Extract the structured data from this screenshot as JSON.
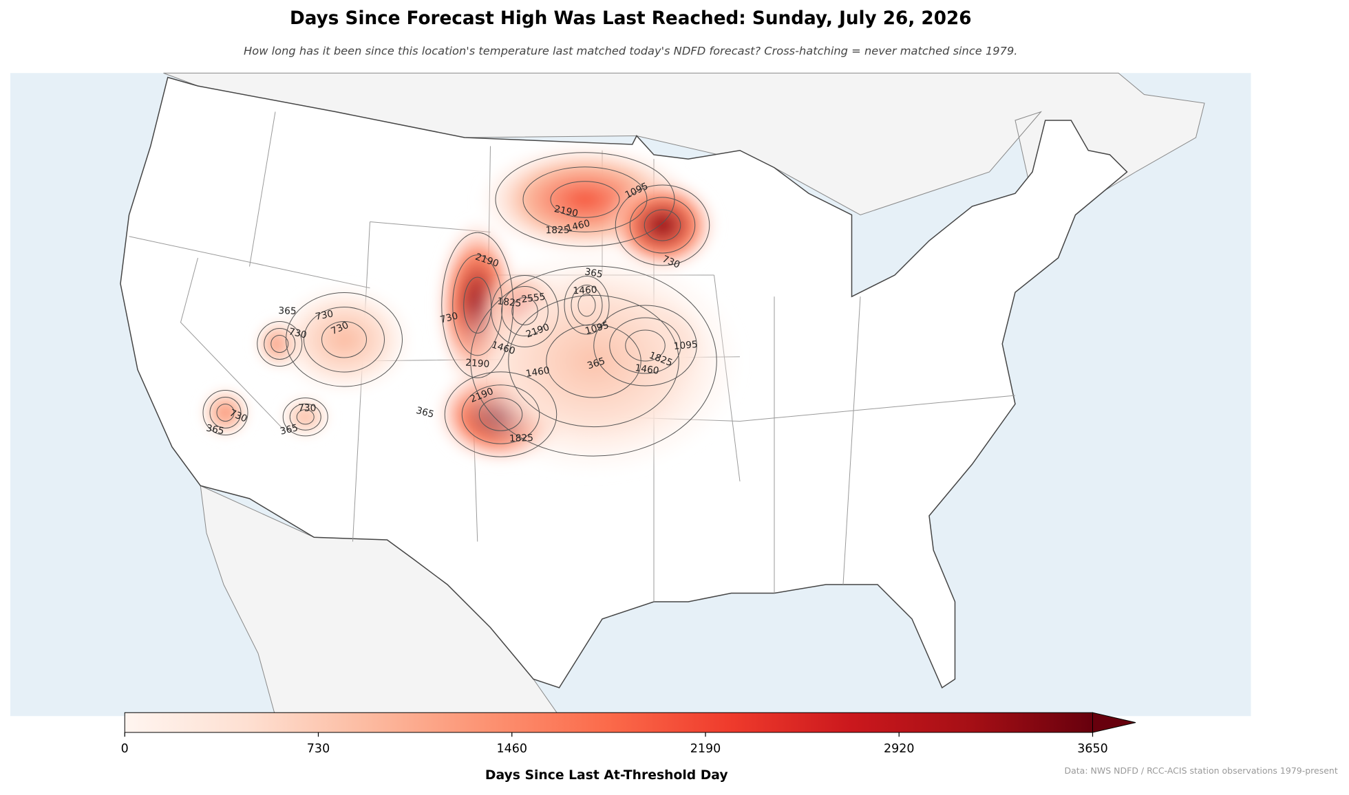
{
  "title": "Days Since Forecast High Was Last Reached: Sunday, July 26, 2026",
  "subtitle": "How long has it been since this location's temperature last matched today's NDFD forecast? Cross-hatching = never matched since 1979.",
  "hotspots": [
    3300,
    3500,
    2600,
    2000,
    3300,
    2200,
    1600,
    1400,
    1400,
    900,
    900,
    800
  ],
  "contour_labels": [
    1095,
    2190,
    1825,
    1460,
    730,
    365,
    1460,
    1095,
    1825,
    1460,
    1095,
    365,
    2190,
    1825,
    2555,
    2190,
    1460,
    2190,
    1460,
    2190,
    365,
    365,
    730,
    730,
    730,
    730,
    365,
    730,
    365,
    1825,
    730
  ],
  "colorbar": {
    "label": "Days Since Last At-Threshold Day",
    "clim": [
      0,
      3650
    ],
    "ticks": [
      0,
      730,
      1460,
      2190,
      2920,
      3650
    ],
    "extend": "max",
    "colormap": [
      "#fff5f0",
      "#fee0d2",
      "#fcbba1",
      "#fc9272",
      "#fb6a4a",
      "#ef3b2c",
      "#cb181d",
      "#a50f15",
      "#67000d"
    ]
  },
  "source": "Data: NWS NDFD / RCC-ACIS station observations 1979-present"
}
